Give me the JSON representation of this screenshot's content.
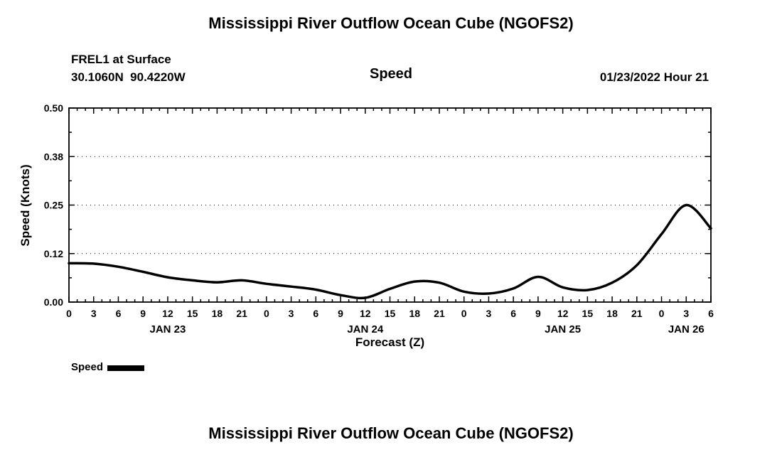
{
  "page": {
    "title_top": "Mississippi River Outflow Ocean Cube (NGOFS2)",
    "title_bottom": "Mississippi River Outflow Ocean Cube (NGOFS2)"
  },
  "header": {
    "station": "FREL1 at Surface",
    "coords": "30.1060N  90.4220W",
    "variable": "Speed",
    "datetime": "01/23/2022 Hour 21"
  },
  "chart_data": {
    "type": "line",
    "title": "Speed",
    "xlabel": "Forecast (Z)",
    "ylabel": "Speed (Knots)",
    "xlim_hours": [
      0,
      78
    ],
    "ylim": [
      0,
      0.5
    ],
    "ytick_values": [
      0,
      0.125,
      0.25,
      0.375,
      0.5
    ],
    "ytick_labels": [
      "0.00",
      "0.12",
      "0.25",
      "0.38",
      "0.50"
    ],
    "xtick_step_hours": 3,
    "xminor_step_hours": 1,
    "xtick_hours": [
      0,
      3,
      6,
      9,
      12,
      15,
      18,
      21,
      24,
      27,
      30,
      33,
      36,
      39,
      42,
      45,
      48,
      51,
      54,
      57,
      60,
      63,
      66,
      69,
      72,
      75,
      78
    ],
    "xtick_labels": [
      "0",
      "3",
      "6",
      "9",
      "12",
      "15",
      "18",
      "21",
      "0",
      "3",
      "6",
      "9",
      "12",
      "15",
      "18",
      "21",
      "0",
      "3",
      "6",
      "9",
      "12",
      "15",
      "18",
      "21",
      "0",
      "3",
      "6"
    ],
    "day_labels": [
      {
        "label": "JAN 23",
        "hour": 12
      },
      {
        "label": "JAN 24",
        "hour": 36
      },
      {
        "label": "JAN 25",
        "hour": 60
      },
      {
        "label": "JAN 26",
        "hour": 75
      }
    ],
    "grid": "horizontal-dotted",
    "line_color": "#000000",
    "legend": {
      "position": "bottom-left",
      "label": "Speed"
    },
    "series": [
      {
        "name": "Speed",
        "color": "#000000",
        "x_hours": [
          0,
          3,
          6,
          9,
          12,
          15,
          18,
          21,
          24,
          27,
          30,
          33,
          36,
          39,
          42,
          45,
          48,
          51,
          54,
          57,
          60,
          63,
          66,
          69,
          72,
          75,
          78
        ],
        "y_knots": [
          0.1,
          0.099,
          0.091,
          0.078,
          0.064,
          0.056,
          0.051,
          0.056,
          0.047,
          0.04,
          0.032,
          0.018,
          0.011,
          0.034,
          0.053,
          0.05,
          0.027,
          0.022,
          0.035,
          0.065,
          0.038,
          0.031,
          0.05,
          0.095,
          0.175,
          0.25,
          0.19
        ]
      }
    ]
  }
}
